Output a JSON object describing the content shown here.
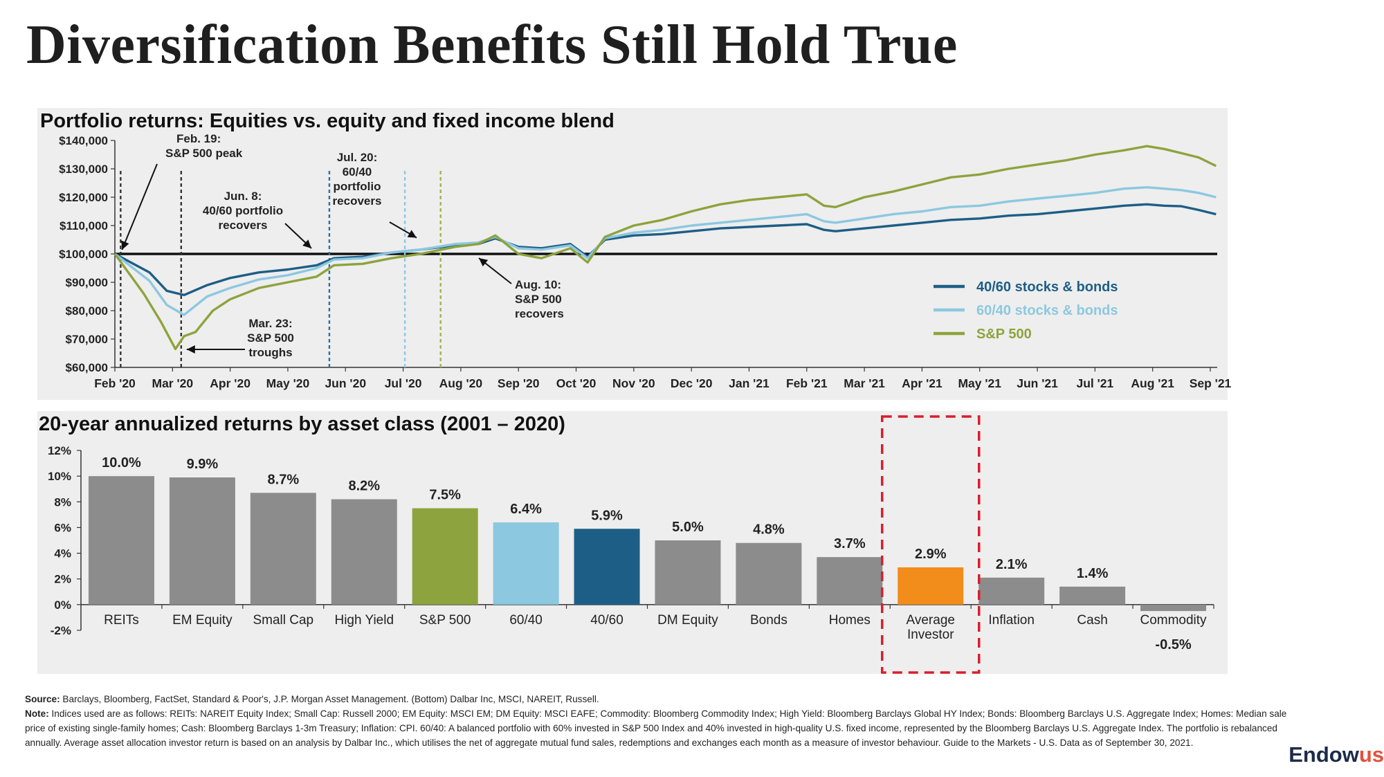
{
  "slide": {
    "title": "Diversification Benefits Still Hold True",
    "source_label": "Source:",
    "source_text": "Barclays, Bloomberg, FactSet, Standard & Poor's, J.P. Morgan Asset Management. (Bottom) Dalbar Inc, MSCI, NAREIT, Russell.",
    "note_label": "Note:",
    "note_text": "Indices used are as follows: REITs: NAREIT Equity Index; Small Cap: Russell 2000; EM Equity: MSCI EM; DM Equity: MSCI EAFE; Commodity: Bloomberg Commodity Index; High Yield: Bloomberg Barclays Global HY Index; Bonds: Bloomberg Barclays U.S. Aggregate Index; Homes: Median sale price of existing single-family homes; Cash: Bloomberg Barclays 1-3m Treasury; Inflation: CPI. 60/40: A balanced portfolio with 60% invested in S&P 500 Index and 40% invested in high-quality U.S. fixed income, represented by the Bloomberg Barclays U.S. Aggregate Index. The portfolio is rebalanced annually. Average asset allocation investor return is based on an analysis by Dalbar Inc., which utilises the net of aggregate mutual fund sales, redemptions and exchanges each month as a measure of investor behaviour. Guide to the Markets - U.S. Data as of September 30, 2021.",
    "logo_main": "Endow",
    "logo_accent": "us"
  },
  "chart_data": [
    {
      "type": "line",
      "title": "Portfolio returns: Equities vs. equity and fixed income blend",
      "x_ticks": [
        "Feb '20",
        "Mar '20",
        "Apr '20",
        "May '20",
        "Jun '20",
        "Jul '20",
        "Aug '20",
        "Sep '20",
        "Oct '20",
        "Nov '20",
        "Dec '20",
        "Jan '21",
        "Feb '21",
        "Mar '21",
        "Apr '21",
        "May '21",
        "Jun '21",
        "Jul '21",
        "Aug '21",
        "Sep '21"
      ],
      "y_ticks": [
        "$60,000",
        "$70,000",
        "$80,000",
        "$90,000",
        "$100,000",
        "$110,000",
        "$120,000",
        "$130,000",
        "$140,000"
      ],
      "ylim": [
        60000,
        140000
      ],
      "baseline": 100000,
      "x_unit": "months since Feb 19, 2020",
      "series": [
        {
          "name": "40/60 stocks & bonds",
          "color": "#1d5e86",
          "x": [
            0,
            0.6,
            0.9,
            1.2,
            1.6,
            2.0,
            2.5,
            3.0,
            3.5,
            3.8,
            4.3,
            4.8,
            5.3,
            5.9,
            6.3,
            6.6,
            7.0,
            7.4,
            7.9,
            8.2,
            8.5,
            9.0,
            9.5,
            10.0,
            10.5,
            11.0,
            11.5,
            12.0,
            12.3,
            12.5,
            13.0,
            13.5,
            14.0,
            14.5,
            15.0,
            15.5,
            16.0,
            16.5,
            17.0,
            17.5,
            17.9,
            18.2,
            18.5,
            18.8,
            19.1
          ],
          "y": [
            100000,
            93500,
            87000,
            85500,
            89000,
            91500,
            93500,
            94500,
            96000,
            98500,
            99000,
            100500,
            101500,
            103000,
            103500,
            105500,
            102500,
            102000,
            103500,
            99000,
            105000,
            106500,
            107000,
            108000,
            109000,
            109500,
            110000,
            110500,
            108500,
            108000,
            109000,
            110000,
            111000,
            112000,
            112500,
            113500,
            114000,
            115000,
            116000,
            117000,
            117500,
            117000,
            116800,
            115500,
            114000
          ]
        },
        {
          "name": "60/40 stocks & bonds",
          "color": "#8cc8e0",
          "x": [
            0,
            0.6,
            0.9,
            1.2,
            1.6,
            2.0,
            2.5,
            3.0,
            3.5,
            3.8,
            4.3,
            4.8,
            5.3,
            5.9,
            6.3,
            6.6,
            7.0,
            7.4,
            7.9,
            8.2,
            8.5,
            9.0,
            9.5,
            10.0,
            10.5,
            11.0,
            11.5,
            12.0,
            12.3,
            12.5,
            13.0,
            13.5,
            14.0,
            14.5,
            15.0,
            15.5,
            16.0,
            16.5,
            17.0,
            17.5,
            17.9,
            18.2,
            18.5,
            18.8,
            19.1
          ],
          "y": [
            100000,
            90500,
            82000,
            78500,
            85000,
            88000,
            91000,
            92500,
            95000,
            98000,
            98500,
            100500,
            101500,
            103500,
            104000,
            106000,
            102000,
            101500,
            103000,
            98500,
            105500,
            107500,
            108500,
            110000,
            111000,
            112000,
            113000,
            114000,
            111500,
            111000,
            112500,
            114000,
            115000,
            116500,
            117000,
            118500,
            119500,
            120500,
            121500,
            123000,
            123500,
            123000,
            122500,
            121500,
            120000
          ]
        },
        {
          "name": "S&P 500",
          "color": "#8da33d",
          "x": [
            0,
            0.5,
            0.8,
            1.05,
            1.2,
            1.4,
            1.7,
            2.0,
            2.5,
            3.0,
            3.5,
            3.8,
            4.3,
            4.8,
            5.3,
            5.9,
            6.3,
            6.6,
            7.0,
            7.4,
            7.9,
            8.2,
            8.5,
            9.0,
            9.5,
            10.0,
            10.5,
            11.0,
            11.5,
            12.0,
            12.3,
            12.5,
            13.0,
            13.5,
            14.0,
            14.5,
            15.0,
            15.5,
            16.0,
            16.5,
            17.0,
            17.5,
            17.9,
            18.2,
            18.5,
            18.8,
            19.1
          ],
          "y": [
            100000,
            86000,
            76000,
            66500,
            71000,
            72500,
            80000,
            84000,
            88000,
            90000,
            92000,
            96000,
            96500,
            98500,
            100000,
            102500,
            103500,
            106500,
            100000,
            98500,
            102000,
            97000,
            106000,
            110000,
            112000,
            115000,
            117500,
            119000,
            120000,
            121000,
            117000,
            116500,
            120000,
            122000,
            124500,
            127000,
            128000,
            130000,
            131500,
            133000,
            135000,
            136500,
            138000,
            137000,
            135500,
            134000,
            131000
          ]
        }
      ],
      "markers": [
        {
          "x": 0.1,
          "color": "#333333"
        },
        {
          "x": 1.15,
          "color": "#333333"
        },
        {
          "x": 3.72,
          "color": "#2b6fa5"
        },
        {
          "x": 5.03,
          "color": "#8cc8e0"
        },
        {
          "x": 5.65,
          "color": "#9fb54a"
        }
      ],
      "annotations": [
        {
          "lines": [
            "Feb. 19:",
            "S&P 500 peak"
          ]
        },
        {
          "lines": [
            "Jun. 8:",
            "40/60 portfolio",
            "recovers"
          ]
        },
        {
          "lines": [
            "Jul. 20:",
            "60/40",
            "portfolio",
            "recovers"
          ]
        },
        {
          "lines": [
            "Mar. 23:",
            "S&P 500",
            "troughs"
          ]
        },
        {
          "lines": [
            "Aug. 10:",
            "S&P 500",
            "recovers"
          ]
        }
      ],
      "legend_position": "right"
    },
    {
      "type": "bar",
      "title": "20-year annualized returns by asset class (2001 – 2020)",
      "categories": [
        "REITs",
        "EM Equity",
        "Small Cap",
        "High Yield",
        "S&P 500",
        "60/40",
        "40/60",
        "DM Equity",
        "Bonds",
        "Homes",
        "Average Investor",
        "Inflation",
        "Cash",
        "Commodity"
      ],
      "values": [
        10.0,
        9.9,
        8.7,
        8.2,
        7.5,
        6.4,
        5.9,
        5.0,
        4.8,
        3.7,
        2.9,
        2.1,
        1.4,
        -0.5
      ],
      "value_labels": [
        "10.0%",
        "9.9%",
        "8.7%",
        "8.2%",
        "7.5%",
        "6.4%",
        "5.9%",
        "5.0%",
        "4.8%",
        "3.7%",
        "2.9%",
        "2.1%",
        "1.4%",
        "-0.5%"
      ],
      "colors": [
        "#8c8c8c",
        "#8c8c8c",
        "#8c8c8c",
        "#8c8c8c",
        "#8da33d",
        "#8cc8e0",
        "#1d5e86",
        "#8c8c8c",
        "#8c8c8c",
        "#8c8c8c",
        "#f28c1a",
        "#8c8c8c",
        "#8c8c8c",
        "#8c8c8c"
      ],
      "y_ticks": [
        "-2%",
        "0%",
        "2%",
        "4%",
        "6%",
        "8%",
        "10%",
        "12%"
      ],
      "ylim": [
        -2,
        12
      ],
      "highlight": "Average Investor"
    }
  ]
}
